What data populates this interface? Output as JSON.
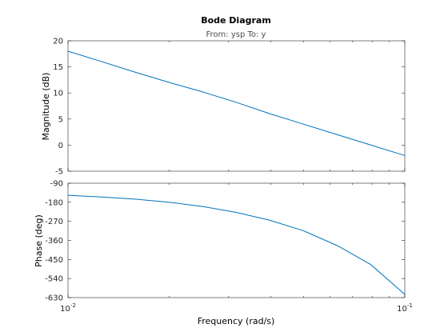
{
  "chart_data": {
    "type": "line",
    "title": "Bode Diagram",
    "subtitle": "From: ysp  To: y",
    "xlabel": "Frequency  (rad/s)",
    "xscale": "log",
    "xlim": [
      0.01,
      0.1
    ],
    "x_ticks": [
      {
        "value": 0.01,
        "base": "10",
        "exp": "-2"
      },
      {
        "value": 0.1,
        "base": "10",
        "exp": "-1"
      }
    ],
    "color": "#0072bd",
    "panels": [
      {
        "name": "magnitude",
        "ylabel": "Magnitude (dB)",
        "ylim": [
          -5,
          20
        ],
        "yticks": [
          -5,
          0,
          5,
          10,
          15,
          20
        ],
        "series": [
          {
            "x": [
              0.01,
              0.0126,
              0.0158,
              0.02,
              0.0251,
              0.0316,
              0.0398,
              0.0501,
              0.0631,
              0.0794,
              0.1
            ],
            "y": [
              18.0,
              16.0,
              14.0,
              12.0,
              10.2,
              8.2,
              6.0,
              4.0,
              2.0,
              0.0,
              -2.0
            ]
          }
        ]
      },
      {
        "name": "phase",
        "ylabel": "Phase (deg)",
        "ylim": [
          -630,
          -90
        ],
        "yticks": [
          -630,
          -540,
          -450,
          -360,
          -270,
          -180,
          -90
        ],
        "series": [
          {
            "x": [
              0.01,
              0.0126,
              0.0158,
              0.02,
              0.0251,
              0.0316,
              0.0398,
              0.0501,
              0.0631,
              0.0794,
              0.1
            ],
            "y": [
              -147,
              -155,
              -165,
              -180,
              -200,
              -228,
              -265,
              -315,
              -385,
              -475,
              -615
            ]
          }
        ]
      }
    ]
  }
}
